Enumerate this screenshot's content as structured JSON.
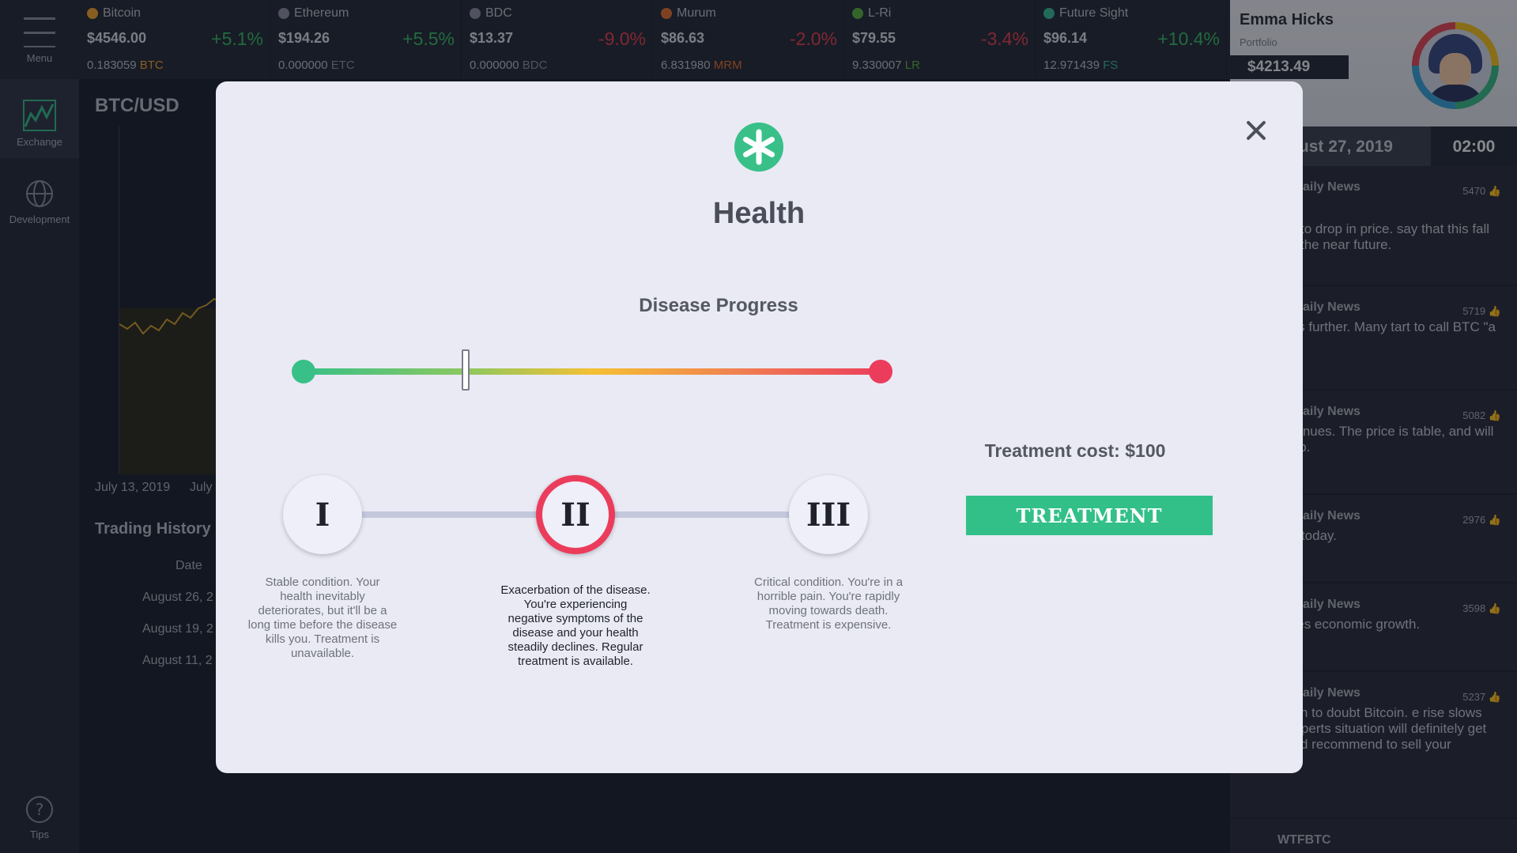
{
  "nav": {
    "menu": "Menu",
    "exchange": "Exchange",
    "development": "Development",
    "tips": "Tips"
  },
  "ticker": [
    {
      "name": "Bitcoin",
      "price": "$4546.00",
      "change": "+5.1%",
      "holding": "0.183059",
      "symbol": "BTC",
      "color": "#f0a030",
      "positive": true
    },
    {
      "name": "Ethereum",
      "price": "$194.26",
      "change": "+5.5%",
      "holding": "0.000000",
      "symbol": "ETC",
      "color": "#8a8fa0",
      "positive": true
    },
    {
      "name": "BDC",
      "price": "$13.37",
      "change": "-9.0%",
      "holding": "0.000000",
      "symbol": "BDC",
      "color": "#8a8fa0",
      "positive": false
    },
    {
      "name": "Murum",
      "price": "$86.63",
      "change": "-2.0%",
      "holding": "6.831980",
      "symbol": "MRM",
      "color": "#e07030",
      "positive": false
    },
    {
      "name": "L-Ri",
      "price": "$79.55",
      "change": "-3.4%",
      "holding": "9.330007",
      "symbol": "LR",
      "color": "#58b040",
      "positive": false
    },
    {
      "name": "Future Sight",
      "price": "$96.14",
      "change": "+10.4%",
      "holding": "12.971439",
      "symbol": "FS",
      "color": "#38b898",
      "positive": true
    }
  ],
  "profile": {
    "name": "Emma Hicks",
    "label": "Portfolio",
    "balance": "$4213.49"
  },
  "datebar": {
    "date": "ust 27, 2019",
    "time": "02:00"
  },
  "news": [
    {
      "source": "ur Daily News",
      "likes": "5470",
      "text": "ontinues to drop in price. say that this fall should n the near future."
    },
    {
      "source": "ur Daily News",
      "likes": "5719",
      "text": "rice drops further. Many tart to call BTC \"a bubble\"."
    },
    {
      "source": "ur Daily News",
      "likes": "5082",
      "text": "anic continues. The price is table, and will likely drop."
    },
    {
      "source": "ur Daily News",
      "likes": "2976",
      "text": "happens today."
    },
    {
      "source": "ur Daily News",
      "likes": "3598",
      "text": "xperiences economic growth."
    },
    {
      "source": "ur Daily News",
      "likes": "5237",
      "text": "ople begin to doubt Bitcoin. e rise slows down. Experts situation will definitely get worse and recommend to sell your Bitcoins."
    },
    {
      "source": "WTFBTC",
      "likes": "",
      "text": ""
    }
  ],
  "background": {
    "pair": "BTC/USD",
    "date1": "July 13, 2019",
    "date2": "July",
    "trading_history": "Trading History",
    "date_header": "Date",
    "rows": [
      "August 26, 2",
      "August 19, 2",
      "August 11, 2"
    ]
  },
  "modal": {
    "title": "Health",
    "disease_progress_label": "Disease Progress",
    "progress": 0.28,
    "stages": [
      {
        "numeral": "I",
        "description": "Stable condition. Your health inevitably deteriorates, but it'll be a long time before the disease kills you. Treatment is unavailable."
      },
      {
        "numeral": "II",
        "description": "Exacerbation of the disease. You're experiencing negative symptoms of the disease and your health steadily declines. Regular treatment is available."
      },
      {
        "numeral": "III",
        "description": "Critical condition. You're in a horrible pain. You're rapidly moving towards death. Treatment is expensive."
      }
    ],
    "active_stage": 1,
    "treatment_cost": "Treatment cost: $100",
    "treatment_button": "TREATMENT",
    "accent_color": "#32c088",
    "danger_color": "#ec3c5c"
  }
}
